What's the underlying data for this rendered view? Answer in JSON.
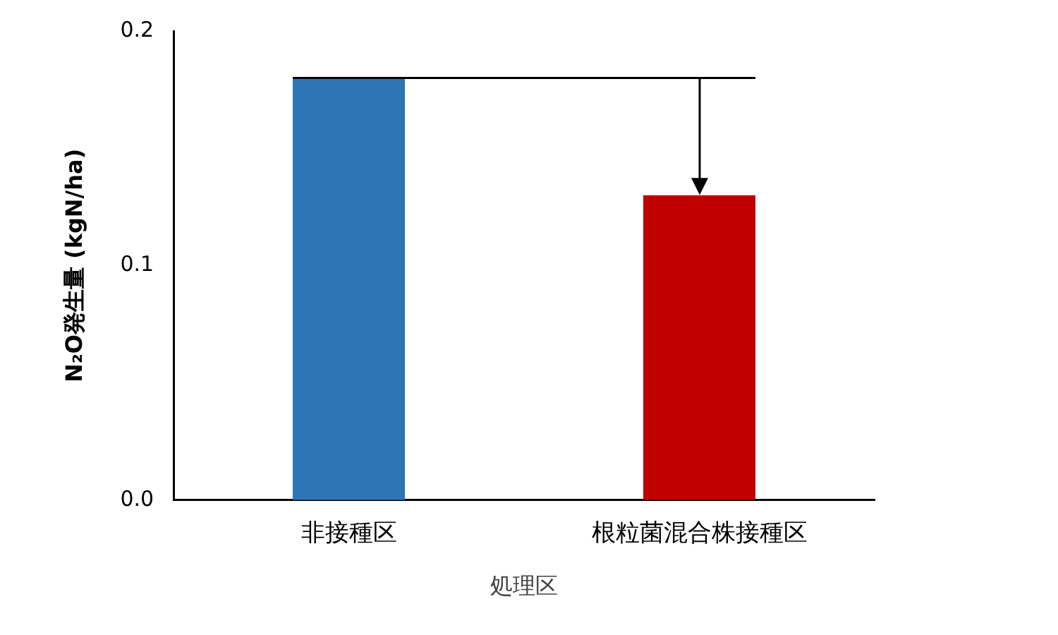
{
  "chart_data": {
    "type": "bar",
    "xlabel": "処理区",
    "ylabel": "N₂O発生量 (kgN/ha)",
    "categories": [
      "非接種区",
      "根粒菌混合株接種区"
    ],
    "values": [
      0.18,
      0.13
    ],
    "colors": [
      "#2e75b6",
      "#c00000"
    ],
    "ylim": [
      0,
      0.2
    ],
    "yticks": [
      {
        "value": 0,
        "label": "0.0"
      },
      {
        "value": 0.1,
        "label": "0.1"
      },
      {
        "value": 0.2,
        "label": "0.2"
      }
    ],
    "grid": false,
    "legend": false,
    "ref_lines": [
      {
        "axis": "y",
        "value": 0.18,
        "color": "#000000"
      }
    ]
  }
}
